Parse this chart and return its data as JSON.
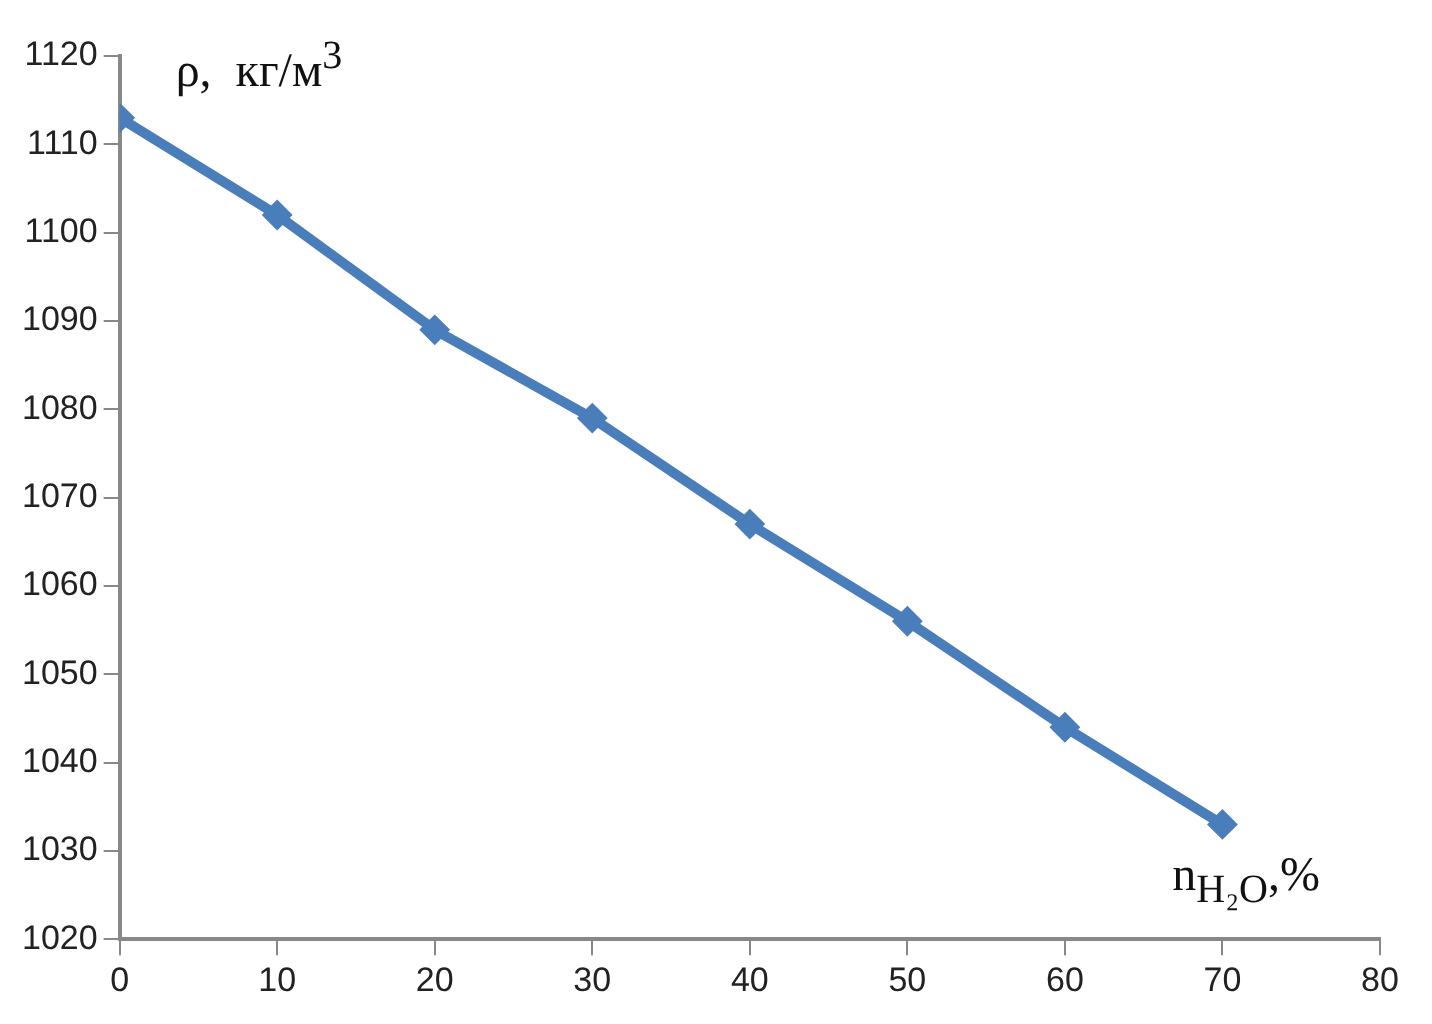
{
  "chart_data": {
    "type": "line",
    "xlabel": "n$_{H₂O}$,%",
    "ylabel": "ρ,  кг/м$^{3}$",
    "x": [
      0,
      10,
      20,
      30,
      40,
      50,
      60,
      70
    ],
    "series": [
      {
        "color": "#4a7ebb",
        "values": [
          1113,
          1102,
          1089,
          1079,
          1067,
          1056,
          1044,
          1033
        ]
      }
    ],
    "xlim": [
      0,
      80
    ],
    "xticks": [
      0,
      10,
      20,
      30,
      40,
      50,
      60,
      70,
      80
    ],
    "ylim": [
      1020,
      1120
    ],
    "yticks": [
      1020,
      1030,
      1040,
      1050,
      1060,
      1070,
      1080,
      1090,
      1100,
      1110,
      1120
    ],
    "grid": false,
    "legend": false,
    "marker": "diamond",
    "line_style": "solid"
  }
}
